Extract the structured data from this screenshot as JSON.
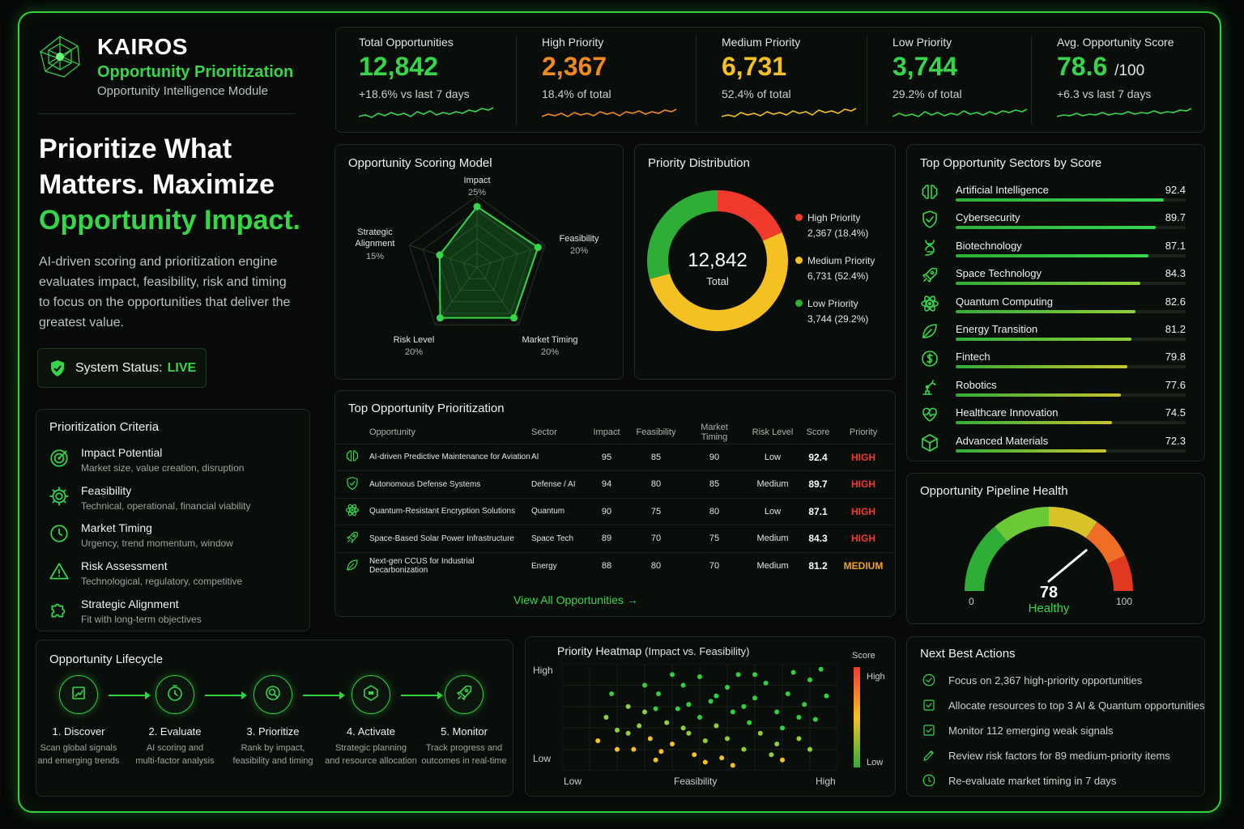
{
  "brand": {
    "name": "KAIROS",
    "subtitle": "Opportunity Prioritization",
    "module": "Opportunity Intelligence Module"
  },
  "hero": {
    "line1": "Prioritize What",
    "line2": "Matters. Maximize",
    "highlight": "Opportunity Impact.",
    "description": "AI-driven scoring and prioritization engine evaluates impact, feasibility, risk and timing to focus on the opportunities that deliver the greatest value."
  },
  "status": {
    "label": "System Status:",
    "value": "LIVE"
  },
  "criteria": {
    "title": "Prioritization Criteria",
    "items": [
      {
        "title": "Impact Potential",
        "desc": "Market size, value creation, disruption",
        "icon": "target-icon"
      },
      {
        "title": "Feasibility",
        "desc": "Technical, operational, financial viability",
        "icon": "gear-icon"
      },
      {
        "title": "Market Timing",
        "desc": "Urgency, trend momentum, window",
        "icon": "clock-icon"
      },
      {
        "title": "Risk Assessment",
        "desc": "Technological, regulatory, competitive",
        "icon": "warning-icon"
      },
      {
        "title": "Strategic Alignment",
        "desc": "Fit with long-term objectives",
        "icon": "puzzle-icon"
      }
    ]
  },
  "kpis": [
    {
      "label": "Total Opportunities",
      "value": "12,842",
      "unit": "",
      "sub": "+18.6% vs last 7 days",
      "color": "#37d64a"
    },
    {
      "label": "High Priority",
      "value": "2,367",
      "unit": "",
      "sub": "18.4% of total",
      "color": "#f08a1c"
    },
    {
      "label": "Medium Priority",
      "value": "6,731",
      "unit": "",
      "sub": "52.4% of total",
      "color": "#f5c021"
    },
    {
      "label": "Low Priority",
      "value": "3,744",
      "unit": "",
      "sub": "29.2% of total",
      "color": "#37d64a"
    },
    {
      "label": "Avg. Opportunity Score",
      "value": "78.6",
      "unit": "/100",
      "sub": "+6.3 vs last 7 days",
      "color": "#37d64a"
    }
  ],
  "scoring": {
    "title": "Opportunity Scoring Model",
    "axes": [
      {
        "name": "Impact",
        "weight": "25%",
        "value": 0.85
      },
      {
        "name": "Feasibility",
        "weight": "20%",
        "value": 0.9
      },
      {
        "name": "Market Timing",
        "weight": "20%",
        "value": 0.88
      },
      {
        "name": "Risk Level",
        "weight": "20%",
        "value": 0.88
      },
      {
        "name": "Strategic Alignment",
        "weight": "15%",
        "value": 0.55
      }
    ]
  },
  "distribution": {
    "title": "Priority Distribution",
    "total": "12,842",
    "total_label": "Total",
    "items": [
      {
        "name": "High Priority",
        "value": "2,367 (18.4%)",
        "share": 18.4,
        "color": "#ef3a2c"
      },
      {
        "name": "Medium Priority",
        "value": "6,731 (52.4%)",
        "share": 52.4,
        "color": "#f5c021"
      },
      {
        "name": "Low Priority",
        "value": "3,744 (29.2%)",
        "share": 29.2,
        "color": "#2fae37"
      }
    ]
  },
  "sectors": {
    "title": "Top Opportunity Sectors by Score",
    "items": [
      {
        "name": "Artificial Intelligence",
        "score": "92.4",
        "icon": "brain-icon"
      },
      {
        "name": "Cybersecurity",
        "score": "89.7",
        "icon": "shield-icon"
      },
      {
        "name": "Biotechnology",
        "score": "87.1",
        "icon": "dna-icon"
      },
      {
        "name": "Space Technology",
        "score": "84.3",
        "icon": "rocket-icon"
      },
      {
        "name": "Quantum Computing",
        "score": "82.6",
        "icon": "atom-icon"
      },
      {
        "name": "Energy Transition",
        "score": "81.2",
        "icon": "leaf-icon"
      },
      {
        "name": "Fintech",
        "score": "79.8",
        "icon": "dollar-icon"
      },
      {
        "name": "Robotics",
        "score": "77.6",
        "icon": "robot-arm-icon"
      },
      {
        "name": "Healthcare Innovation",
        "score": "74.5",
        "icon": "heart-pulse-icon"
      },
      {
        "name": "Advanced Materials",
        "score": "72.3",
        "icon": "cube-icon"
      }
    ]
  },
  "table": {
    "title": "Top Opportunity Prioritization",
    "headers": [
      "Opportunity",
      "Sector",
      "Impact",
      "Feasibility",
      "Market Timing",
      "Risk Level",
      "Score",
      "Priority"
    ],
    "rows": [
      {
        "icon": "brain-icon",
        "name": "AI-driven Predictive Maintenance for Aviation",
        "sector": "AI",
        "impact": "95",
        "feasibility": "85",
        "timing": "90",
        "risk": "Low",
        "score": "92.4",
        "priority": "HIGH"
      },
      {
        "icon": "shield-icon",
        "name": "Autonomous Defense Systems",
        "sector": "Defense / AI",
        "impact": "94",
        "feasibility": "80",
        "timing": "85",
        "risk": "Medium",
        "score": "89.7",
        "priority": "HIGH"
      },
      {
        "icon": "atom-icon",
        "name": "Quantum-Resistant Encryption Solutions",
        "sector": "Quantum",
        "impact": "90",
        "feasibility": "75",
        "timing": "80",
        "risk": "Low",
        "score": "87.1",
        "priority": "HIGH"
      },
      {
        "icon": "rocket-icon",
        "name": "Space-Based Solar Power Infrastructure",
        "sector": "Space Tech",
        "impact": "89",
        "feasibility": "70",
        "timing": "75",
        "risk": "Medium",
        "score": "84.3",
        "priority": "HIGH"
      },
      {
        "icon": "leaf-icon",
        "name": "Next-gen CCUS for Industrial Decarbonization",
        "sector": "Energy",
        "impact": "88",
        "feasibility": "80",
        "timing": "70",
        "risk": "Medium",
        "score": "81.2",
        "priority": "MEDIUM"
      }
    ],
    "view_all": "View All Opportunities →"
  },
  "pipeline": {
    "title": "Opportunity Pipeline Health",
    "value": 78,
    "value_text": "78",
    "label": "Healthy",
    "min": "0",
    "max": "100"
  },
  "lifecycle": {
    "title": "Opportunity Lifecycle",
    "steps": [
      {
        "title": "1. Discover",
        "desc1": "Scan global signals",
        "desc2": "and emerging trends",
        "icon": "radar-icon"
      },
      {
        "title": "2. Evaluate",
        "desc1": "AI scoring and",
        "desc2": "multi-factor analysis",
        "icon": "stopwatch-icon"
      },
      {
        "title": "3. Prioritize",
        "desc1": "Rank by impact,",
        "desc2": "feasibility and timing",
        "icon": "magnifier-icon"
      },
      {
        "title": "4. Activate",
        "desc1": "Strategic planning",
        "desc2": "and resource allocation",
        "icon": "chip-icon"
      },
      {
        "title": "5. Monitor",
        "desc1": "Track progress and",
        "desc2": "outcomes in real-time",
        "icon": "rocket-icon"
      }
    ]
  },
  "heatmap": {
    "title": "Priority Heatmap",
    "title_sub": "(Impact vs. Feasibility)",
    "y_high": "High",
    "y_low": "Low",
    "x_low": "Low",
    "x_label": "Feasibility",
    "x_high": "High",
    "legend_title": "Score",
    "legend_high": "High",
    "legend_low": "Low"
  },
  "actions": {
    "title": "Next Best Actions",
    "items": [
      {
        "text": "Focus on 2,367 high-priority opportunities",
        "icon": "check-circle-icon"
      },
      {
        "text": "Allocate resources to top 3 AI & Quantum opportunities",
        "icon": "checklist-icon"
      },
      {
        "text": "Monitor 112 emerging weak signals",
        "icon": "checkbox-icon"
      },
      {
        "text": "Review risk factors for 89 medium-priority items",
        "icon": "pen-icon"
      },
      {
        "text": "Re-evaluate market timing in 7 days",
        "icon": "clock-icon"
      }
    ]
  },
  "chart_data": {
    "type": "scatter",
    "title": "Priority Heatmap",
    "xlabel": "Feasibility",
    "ylabel": "",
    "points": [
      [
        0.13,
        0.28
      ],
      [
        0.16,
        0.5
      ],
      [
        0.2,
        0.2
      ],
      [
        0.2,
        0.38
      ],
      [
        0.24,
        0.6
      ],
      [
        0.26,
        0.2
      ],
      [
        0.28,
        0.42
      ],
      [
        0.3,
        0.55
      ],
      [
        0.32,
        0.3
      ],
      [
        0.34,
        0.1
      ],
      [
        0.35,
        0.72
      ],
      [
        0.38,
        0.45
      ],
      [
        0.4,
        0.25
      ],
      [
        0.42,
        0.58
      ],
      [
        0.44,
        0.8
      ],
      [
        0.46,
        0.35
      ],
      [
        0.48,
        0.15
      ],
      [
        0.5,
        0.5
      ],
      [
        0.5,
        0.88
      ],
      [
        0.52,
        0.28
      ],
      [
        0.54,
        0.65
      ],
      [
        0.56,
        0.42
      ],
      [
        0.58,
        0.12
      ],
      [
        0.6,
        0.78
      ],
      [
        0.6,
        0.3
      ],
      [
        0.62,
        0.55
      ],
      [
        0.64,
        0.9
      ],
      [
        0.66,
        0.2
      ],
      [
        0.68,
        0.45
      ],
      [
        0.7,
        0.68
      ],
      [
        0.72,
        0.35
      ],
      [
        0.74,
        0.82
      ],
      [
        0.76,
        0.15
      ],
      [
        0.78,
        0.55
      ],
      [
        0.8,
        0.4
      ],
      [
        0.82,
        0.72
      ],
      [
        0.84,
        0.92
      ],
      [
        0.86,
        0.3
      ],
      [
        0.88,
        0.62
      ],
      [
        0.9,
        0.85
      ],
      [
        0.92,
        0.48
      ],
      [
        0.94,
        0.95
      ],
      [
        0.96,
        0.7
      ],
      [
        0.24,
        0.35
      ],
      [
        0.36,
        0.18
      ],
      [
        0.44,
        0.4
      ],
      [
        0.56,
        0.7
      ],
      [
        0.66,
        0.6
      ],
      [
        0.78,
        0.25
      ],
      [
        0.9,
        0.2
      ],
      [
        0.3,
        0.8
      ],
      [
        0.4,
        0.9
      ],
      [
        0.18,
        0.72
      ],
      [
        0.52,
        0.08
      ],
      [
        0.7,
        0.9
      ],
      [
        0.86,
        0.5
      ],
      [
        0.62,
        0.05
      ],
      [
        0.46,
        0.62
      ],
      [
        0.34,
        0.58
      ],
      [
        0.8,
        0.1
      ]
    ]
  }
}
